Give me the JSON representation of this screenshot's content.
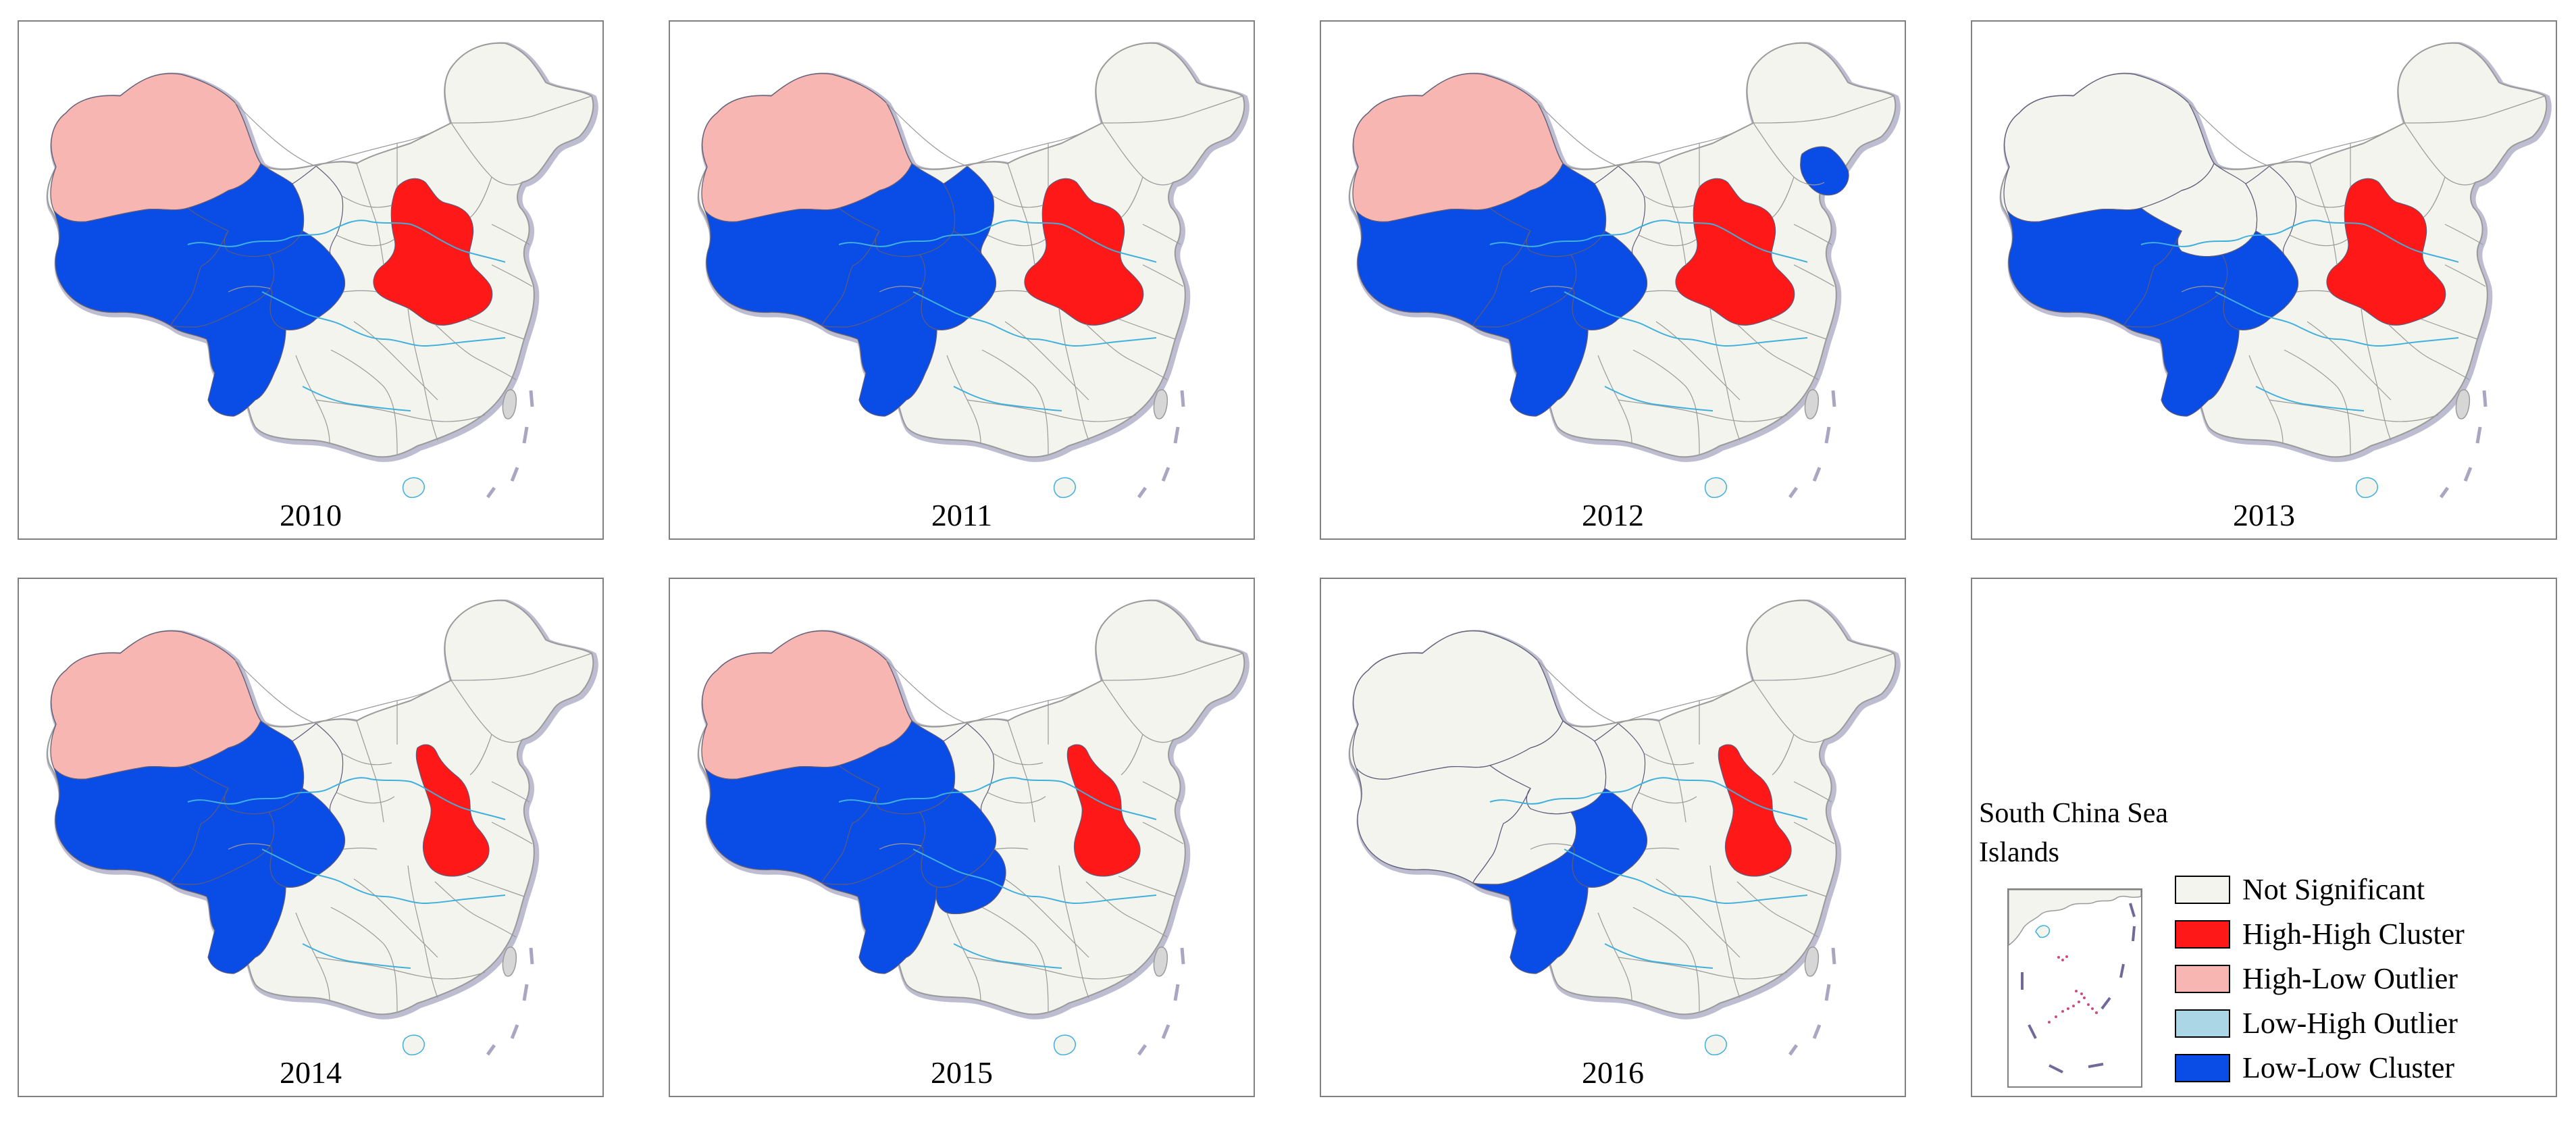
{
  "colors": {
    "not_significant": "#f4f4ee",
    "high_high": "#fe1818",
    "high_low": "#f8b6b2",
    "low_high": "#aad6e6",
    "low_low": "#0a4ce6",
    "border": "#9a9a9a",
    "rivers": "#3fb0dc",
    "coast_shadow": "#6f6a9a"
  },
  "panels": [
    {
      "year": "2010",
      "regions": {
        "xinjiang": "high_low",
        "tibet_west": "low_low",
        "qinghai": "low_low",
        "sichuan": "low_low",
        "yunnan": "low_low",
        "gansu_south": "not_significant",
        "north_china_plain": "high_high",
        "northeast": "not_significant",
        "tibet_east": "low_low"
      }
    },
    {
      "year": "2011",
      "regions": {
        "xinjiang": "high_low",
        "tibet_west": "low_low",
        "qinghai": "low_low",
        "sichuan": "low_low",
        "yunnan": "low_low",
        "gansu_south": "low_low",
        "north_china_plain": "high_high",
        "northeast": "not_significant",
        "tibet_east": "low_low"
      }
    },
    {
      "year": "2012",
      "regions": {
        "xinjiang": "high_low",
        "tibet_west": "low_low",
        "qinghai": "low_low",
        "sichuan": "low_low",
        "yunnan": "low_low",
        "gansu_south": "not_significant",
        "north_china_plain": "high_high",
        "northeast": "low_low_jilin",
        "tibet_east": "low_low"
      }
    },
    {
      "year": "2013",
      "regions": {
        "xinjiang": "not_significant",
        "tibet_west": "low_low",
        "qinghai": "not_significant",
        "sichuan": "low_low",
        "yunnan": "low_low",
        "gansu_south": "not_significant",
        "north_china_plain": "high_high",
        "northeast": "not_significant",
        "tibet_east": "low_low"
      }
    },
    {
      "year": "2014",
      "regions": {
        "xinjiang": "high_low",
        "tibet_west": "low_low",
        "qinghai": "low_low",
        "sichuan": "low_low",
        "yunnan": "low_low",
        "gansu_south": "not_significant",
        "north_china_plain": "high_high_narrow",
        "northeast": "not_significant",
        "tibet_east": "low_low"
      }
    },
    {
      "year": "2015",
      "regions": {
        "xinjiang": "high_low",
        "tibet_west": "low_low",
        "qinghai": "low_low",
        "sichuan": "low_low",
        "yunnan": "low_low",
        "gansu_south": "not_significant",
        "north_china_plain": "high_high_narrow",
        "northeast": "not_significant",
        "tibet_east": "low_low",
        "chongqing_guizhou": "low_low"
      }
    },
    {
      "year": "2016",
      "regions": {
        "xinjiang": "not_significant",
        "tibet_west": "not_significant",
        "qinghai": "not_significant",
        "sichuan": "low_low",
        "yunnan": "low_low",
        "gansu_south": "not_significant",
        "north_china_plain": "high_high_narrow",
        "northeast": "not_significant",
        "tibet_east": "not_significant"
      }
    }
  ],
  "inset": {
    "title": "South China Sea Islands"
  },
  "legend": {
    "items": [
      {
        "label": "Not Significant",
        "color_key": "not_significant"
      },
      {
        "label": "High-High Cluster",
        "color_key": "high_high"
      },
      {
        "label": "High-Low Outlier",
        "color_key": "high_low"
      },
      {
        "label": "Low-High Outlier",
        "color_key": "low_high"
      },
      {
        "label": "Low-Low Cluster",
        "color_key": "low_low"
      }
    ]
  }
}
